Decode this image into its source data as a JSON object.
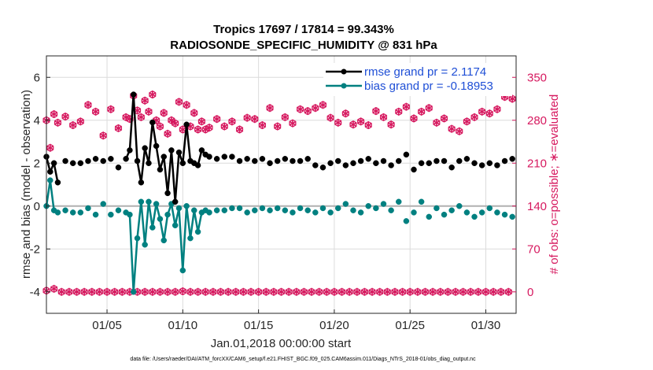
{
  "chart_data": {
    "type": "line",
    "title": "Tropics 17697 / 17814 = 99.343%",
    "subtitle": "RADIOSONDE_SPECIFIC_HUMIDITY @ 831 hPa",
    "xlabel": "Jan.01,2018 00:00:00 start",
    "ylabel": "rmse and bias (model - observation)",
    "y2label": "# of obs: o=possible; ∗=evaluated",
    "footer": "data file: /Users/raeder/DAI/ATM_forcXX/CAM6_setup/f.e21.FHIST_BGC.f09_025.CAM6assim.011/Diags_NTrS_2018-01/obs_diag_output.nc",
    "xlim": [
      1.0,
      32.0
    ],
    "ylim": [
      -5,
      7
    ],
    "y2lim": [
      -35,
      385
    ],
    "x_ticks": [
      5,
      10,
      15,
      20,
      25,
      30
    ],
    "x_tick_labels": [
      "01/05",
      "01/10",
      "01/15",
      "01/20",
      "01/25",
      "01/30"
    ],
    "y_ticks": [
      -4,
      -2,
      0,
      2,
      4,
      6
    ],
    "y_tick_labels": [
      "-4",
      "-2",
      "0",
      "2",
      "4",
      "6"
    ],
    "y2_ticks": [
      0,
      70,
      140,
      210,
      280,
      350
    ],
    "y2_tick_labels": [
      "0",
      "70",
      "140",
      "210",
      "280",
      "350"
    ],
    "zero_line": 0,
    "colors": {
      "rmse": "#000000",
      "bias": "#008080",
      "nobs": "#d6195f",
      "legend_text": "#1f4fd6"
    },
    "series": [
      {
        "name": "rmse grand pr = 2.1174",
        "key": "rmse",
        "x": [
          1.0,
          1.25,
          1.5,
          1.75,
          2.25,
          2.75,
          3.25,
          3.75,
          4.25,
          4.75,
          5.25,
          5.75,
          6.25,
          6.5,
          6.75,
          7.0,
          7.25,
          7.5,
          7.75,
          8.0,
          8.25,
          8.5,
          8.75,
          9.0,
          9.25,
          9.5,
          9.75,
          10.0,
          10.25,
          10.5,
          10.75,
          11.0,
          11.25,
          11.5,
          11.75,
          12.25,
          12.75,
          13.25,
          13.75,
          14.25,
          14.75,
          15.25,
          15.75,
          16.25,
          16.75,
          17.25,
          17.75,
          18.25,
          18.75,
          19.25,
          19.75,
          20.25,
          20.75,
          21.25,
          21.75,
          22.25,
          22.75,
          23.25,
          23.75,
          24.25,
          24.75,
          25.25,
          25.75,
          26.25,
          26.75,
          27.25,
          27.75,
          28.25,
          28.75,
          29.25,
          29.75,
          30.25,
          30.75,
          31.25,
          31.75
        ],
        "values": [
          2.3,
          1.6,
          2.0,
          1.1,
          2.1,
          2.0,
          2.0,
          2.1,
          2.2,
          2.1,
          2.2,
          1.8,
          2.2,
          2.6,
          5.2,
          2.1,
          1.1,
          2.7,
          2.0,
          3.9,
          2.8,
          1.7,
          2.3,
          0.6,
          2.6,
          0.2,
          2.5,
          2.0,
          3.8,
          2.1,
          2.0,
          1.9,
          2.6,
          2.4,
          2.3,
          2.2,
          2.3,
          2.3,
          2.1,
          2.2,
          2.1,
          2.2,
          2.0,
          2.1,
          2.2,
          2.1,
          2.1,
          2.2,
          1.9,
          1.8,
          2.0,
          2.1,
          1.9,
          2.0,
          2.1,
          2.2,
          2.0,
          2.1,
          1.9,
          2.1,
          2.4,
          1.7,
          2.0,
          2.0,
          2.1,
          2.1,
          1.8,
          2.1,
          2.2,
          2.0,
          1.9,
          2.0,
          1.9,
          2.1,
          2.2
        ]
      },
      {
        "name": "bias grand pr = -0.18953",
        "key": "bias",
        "x": [
          1.0,
          1.25,
          1.5,
          1.75,
          2.25,
          2.75,
          3.25,
          3.75,
          4.25,
          4.75,
          5.25,
          5.75,
          6.25,
          6.5,
          6.75,
          7.0,
          7.25,
          7.5,
          7.75,
          8.0,
          8.25,
          8.5,
          8.75,
          9.0,
          9.25,
          9.5,
          9.75,
          10.0,
          10.25,
          10.5,
          10.75,
          11.0,
          11.25,
          11.5,
          11.75,
          12.25,
          12.75,
          13.25,
          13.75,
          14.25,
          14.75,
          15.25,
          15.75,
          16.25,
          16.75,
          17.25,
          17.75,
          18.25,
          18.75,
          19.25,
          19.75,
          20.25,
          20.75,
          21.25,
          21.75,
          22.25,
          22.75,
          23.25,
          23.75,
          24.25,
          24.75,
          25.25,
          25.75,
          26.25,
          26.75,
          27.25,
          27.75,
          28.25,
          28.75,
          29.25,
          29.75,
          30.25,
          30.75,
          31.25,
          31.75
        ],
        "values": [
          0.0,
          1.2,
          -0.2,
          -0.3,
          -0.2,
          -0.3,
          -0.3,
          -0.1,
          -0.4,
          0.1,
          -0.4,
          -0.2,
          -0.3,
          -0.4,
          -4.0,
          -1.5,
          0.2,
          -1.8,
          0.2,
          -1.0,
          0.1,
          -0.6,
          -1.6,
          -0.4,
          0.1,
          -0.9,
          -0.1,
          -3.0,
          0.0,
          -1.5,
          -0.2,
          -1.2,
          -0.3,
          -0.2,
          -0.3,
          -0.2,
          -0.2,
          -0.1,
          -0.1,
          -0.3,
          -0.2,
          -0.1,
          -0.2,
          -0.1,
          -0.2,
          -0.3,
          -0.1,
          -0.2,
          -0.3,
          -0.1,
          -0.3,
          -0.1,
          0.1,
          -0.2,
          -0.3,
          0.0,
          -0.1,
          0.1,
          -0.2,
          0.2,
          -0.7,
          -0.3,
          0.2,
          -0.5,
          -0.1,
          -0.4,
          -0.2,
          0.0,
          -0.3,
          -0.5,
          -0.3,
          -0.1,
          -0.3,
          -0.4,
          -0.5
        ]
      },
      {
        "name": "# of obs (possible / evaluated)",
        "key": "nobs",
        "x": [
          1.0,
          1.25,
          1.5,
          1.75,
          2.25,
          2.75,
          3.25,
          3.75,
          4.25,
          4.75,
          5.25,
          5.75,
          6.25,
          6.5,
          6.75,
          7.0,
          7.25,
          7.5,
          7.75,
          8.0,
          8.25,
          8.5,
          8.75,
          9.0,
          9.25,
          9.5,
          9.75,
          10.0,
          10.25,
          10.5,
          10.75,
          11.0,
          11.25,
          11.5,
          11.75,
          12.25,
          12.75,
          13.25,
          13.75,
          14.25,
          14.75,
          15.25,
          15.75,
          16.25,
          16.75,
          17.25,
          17.75,
          18.25,
          18.75,
          19.25,
          19.75,
          20.25,
          20.75,
          21.25,
          21.75,
          22.25,
          22.75,
          23.25,
          23.75,
          24.25,
          24.75,
          25.25,
          25.75,
          26.25,
          26.75,
          27.25,
          27.75,
          28.25,
          28.75,
          29.25,
          29.75,
          30.25,
          30.75,
          31.25,
          31.75
        ],
        "possible": [
          280,
          235,
          290,
          276,
          286,
          272,
          278,
          305,
          294,
          255,
          298,
          267,
          285,
          282,
          320,
          296,
          285,
          312,
          294,
          322,
          280,
          270,
          292,
          258,
          280,
          275,
          310,
          265,
          305,
          270,
          292,
          265,
          278,
          265,
          268,
          282,
          270,
          278,
          265,
          284,
          282,
          272,
          300,
          270,
          285,
          275,
          298,
          295,
          300,
          305,
          284,
          276,
          291,
          273,
          278,
          272,
          295,
          285,
          273,
          294,
          302,
          283,
          294,
          300,
          276,
          283,
          266,
          262,
          278,
          285,
          294,
          291,
          298,
          318,
          315
        ],
        "evaluated": [
          280,
          235,
          290,
          276,
          286,
          272,
          278,
          305,
          294,
          255,
          298,
          267,
          285,
          282,
          320,
          296,
          285,
          312,
          294,
          322,
          280,
          270,
          292,
          258,
          280,
          275,
          310,
          265,
          305,
          270,
          292,
          265,
          278,
          265,
          268,
          282,
          270,
          278,
          265,
          284,
          282,
          272,
          300,
          270,
          285,
          275,
          298,
          295,
          300,
          305,
          284,
          276,
          291,
          273,
          278,
          272,
          295,
          285,
          273,
          294,
          302,
          283,
          294,
          300,
          276,
          283,
          266,
          262,
          278,
          285,
          294,
          291,
          298,
          318,
          315
        ],
        "bottom_row_x": [
          1.0,
          1.5,
          2.0,
          2.5,
          3.0,
          3.5,
          4.0,
          4.5,
          5.0,
          5.5,
          6.0,
          6.5,
          7.0,
          7.5,
          8.0,
          8.5,
          9.0,
          9.5,
          10.0,
          10.5,
          11.0,
          11.5,
          12.0,
          12.5,
          13.0,
          13.5,
          14.0,
          14.5,
          15.0,
          15.5,
          16.0,
          16.5,
          17.0,
          17.5,
          18.0,
          18.5,
          19.0,
          19.5,
          20.0,
          20.5,
          21.0,
          21.5,
          22.0,
          22.5,
          23.0,
          23.5,
          24.0,
          24.5,
          25.0,
          25.5,
          26.0,
          26.5,
          27.0,
          27.5,
          28.0,
          28.5,
          29.0,
          29.5,
          30.0,
          30.5,
          31.0,
          31.5
        ],
        "bottom_row_values": [
          2,
          5,
          0,
          0,
          0,
          0,
          0,
          0,
          0,
          0,
          0,
          0,
          0,
          0,
          0,
          0,
          0,
          0,
          1,
          0,
          0,
          0,
          0,
          0,
          0,
          0,
          0,
          0,
          0,
          0,
          0,
          0,
          0,
          0,
          0,
          0,
          0,
          0,
          0,
          0,
          0,
          0,
          0,
          0,
          0,
          0,
          0,
          0,
          0,
          0,
          0,
          0,
          0,
          0,
          0,
          0,
          0,
          0,
          0,
          0,
          0,
          0
        ]
      }
    ],
    "legend": [
      "rmse grand pr = 2.1174",
      "bias grand pr = -0.18953"
    ],
    "legend_position": "top-right"
  }
}
